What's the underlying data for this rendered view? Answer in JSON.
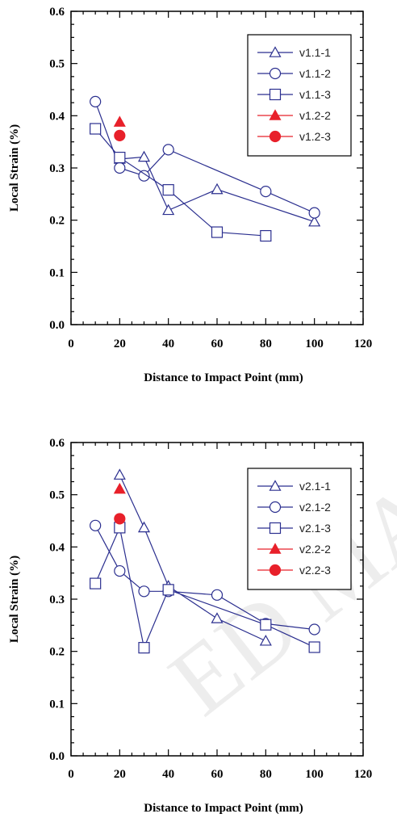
{
  "chart_data": [
    {
      "type": "line",
      "title": "",
      "xlabel": "Distance to Impact Point (mm)",
      "ylabel": "Local Strain (%)",
      "xlim": [
        0,
        120
      ],
      "ylim": [
        0.0,
        0.6
      ],
      "xticks": [
        "0",
        "20",
        "40",
        "60",
        "80",
        "100",
        "120"
      ],
      "yticks": [
        "0.0",
        "0.1",
        "0.2",
        "0.3",
        "0.4",
        "0.5",
        "0.6"
      ],
      "grid": false,
      "legend_position": "top-right",
      "series": [
        {
          "name": "v1.1-1",
          "marker": "triangle-open",
          "color": "#2b2f8f",
          "line": true,
          "x": [
            20,
            30,
            40,
            60,
            100
          ],
          "y": [
            0.317,
            0.321,
            0.219,
            0.259,
            0.197
          ]
        },
        {
          "name": "v1.1-2",
          "marker": "circle-open",
          "color": "#2b2f8f",
          "line": true,
          "x": [
            10,
            20,
            30,
            40,
            80,
            100
          ],
          "y": [
            0.427,
            0.3,
            0.285,
            0.335,
            0.255,
            0.214
          ]
        },
        {
          "name": "v1.1-3",
          "marker": "square-open",
          "color": "#2b2f8f",
          "line": true,
          "x": [
            10,
            20,
            40,
            60,
            80
          ],
          "y": [
            0.375,
            0.32,
            0.258,
            0.177,
            0.17
          ]
        },
        {
          "name": "v1.2-2",
          "marker": "triangle-filled",
          "color": "#e8202a",
          "line": false,
          "x": [
            20
          ],
          "y": [
            0.388
          ]
        },
        {
          "name": "v1.2-3",
          "marker": "circle-filled",
          "color": "#e8202a",
          "line": false,
          "x": [
            20
          ],
          "y": [
            0.362
          ]
        }
      ]
    },
    {
      "type": "line",
      "title": "",
      "xlabel": "Distance to Impact Point (mm)",
      "ylabel": "Local Strain (%)",
      "xlim": [
        0,
        120
      ],
      "ylim": [
        0.0,
        0.6
      ],
      "xticks": [
        "0",
        "20",
        "40",
        "60",
        "80",
        "100",
        "120"
      ],
      "yticks": [
        "0.0",
        "0.1",
        "0.2",
        "0.3",
        "0.4",
        "0.5",
        "0.6"
      ],
      "grid": false,
      "legend_position": "top-right",
      "series": [
        {
          "name": "v2.1-1",
          "marker": "triangle-open",
          "color": "#2b2f8f",
          "line": true,
          "x": [
            20,
            30,
            40,
            60,
            80
          ],
          "y": [
            0.538,
            0.437,
            0.325,
            0.263,
            0.22
          ]
        },
        {
          "name": "v2.1-2",
          "marker": "circle-open",
          "color": "#2b2f8f",
          "line": true,
          "x": [
            10,
            20,
            30,
            40,
            60,
            80,
            100
          ],
          "y": [
            0.441,
            0.354,
            0.315,
            0.315,
            0.308,
            0.253,
            0.242
          ]
        },
        {
          "name": "v2.1-3",
          "marker": "square-open",
          "color": "#2b2f8f",
          "line": true,
          "x": [
            10,
            20,
            30,
            40,
            80,
            100
          ],
          "y": [
            0.33,
            0.437,
            0.207,
            0.318,
            0.251,
            0.208
          ]
        },
        {
          "name": "v2.2-2",
          "marker": "triangle-filled",
          "color": "#e8202a",
          "line": false,
          "x": [
            20
          ],
          "y": [
            0.511
          ]
        },
        {
          "name": "v2.2-3",
          "marker": "circle-filled",
          "color": "#e8202a",
          "line": false,
          "x": [
            20
          ],
          "y": [
            0.454
          ]
        }
      ]
    }
  ]
}
